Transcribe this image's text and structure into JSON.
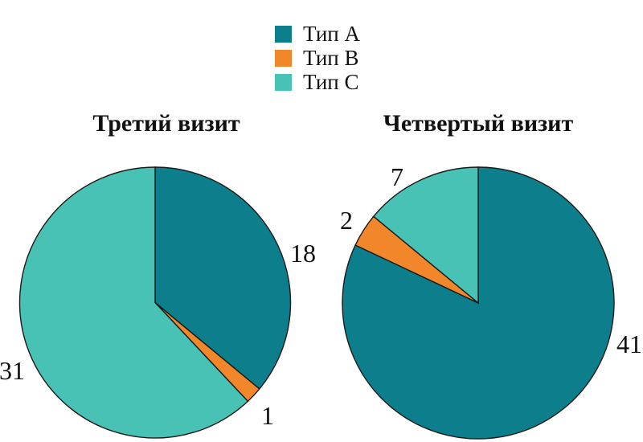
{
  "page": {
    "background": "#ffffff",
    "text_color": "#111111",
    "outline_color": "#1a1a1a"
  },
  "legend": {
    "position": "top-center",
    "items": [
      {
        "label": "Тип A",
        "color": "#0D7F8C"
      },
      {
        "label": "Тип B",
        "color": "#F2862A"
      },
      {
        "label": "Тип C",
        "color": "#48C2B4"
      }
    ]
  },
  "chart_data": [
    {
      "type": "pie",
      "title": "Третий визит",
      "labels": [
        "Тип A",
        "Тип B",
        "Тип C"
      ],
      "values": [
        18,
        1,
        31
      ],
      "colors": [
        "#0D7F8C",
        "#F2862A",
        "#48C2B4"
      ],
      "total": 50,
      "start_angle_deg": 0,
      "direction": "clockwise",
      "value_labels_outside": true
    },
    {
      "type": "pie",
      "title": "Четвертый визит",
      "labels": [
        "Тип A",
        "Тип B",
        "Тип C"
      ],
      "values": [
        41,
        2,
        7
      ],
      "colors": [
        "#0D7F8C",
        "#F2862A",
        "#48C2B4"
      ],
      "total": 50,
      "start_angle_deg": 0,
      "direction": "clockwise",
      "value_labels_outside": true
    }
  ]
}
